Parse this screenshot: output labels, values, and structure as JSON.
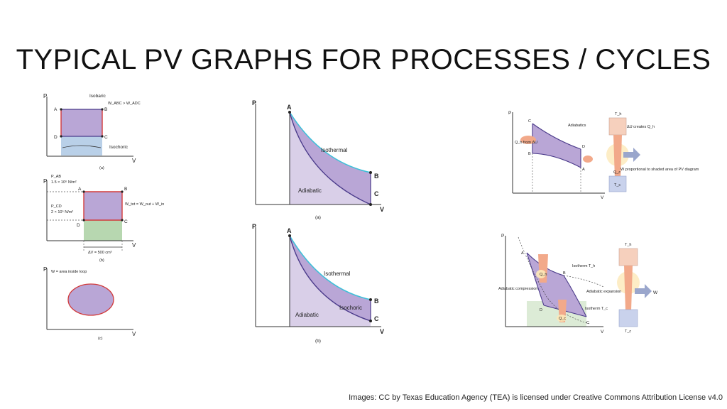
{
  "title": "TYPICAL PV GRAPHS FOR PROCESSES / CYCLES",
  "credit": "Images: CC by Texas Education Agency (TEA) is licensed under Creative Commons Attribution License v4.0",
  "axis": {
    "p": "P",
    "v": "V"
  },
  "fig_a": {
    "isobaric": "Isobaric",
    "work_cmp": "W_ABC > W_ADC",
    "isochoric": "Isochoric",
    "points": [
      "A",
      "B",
      "C",
      "D"
    ],
    "caption": "(a)"
  },
  "fig_b": {
    "p_ab_label": "P_AB",
    "p_ab_value": "1.5 × 10⁶ N/m²",
    "p_cd_label": "P_CD",
    "p_cd_value": "2 × 10⁵ N/m²",
    "w_tot": "W_tot = W_out + W_in",
    "dv": "ΔV = 500 cm³",
    "points": [
      "A",
      "B",
      "C",
      "D"
    ],
    "caption": "(b)"
  },
  "fig_c": {
    "loop": "W = area inside loop",
    "caption": "(c)"
  },
  "mid_a": {
    "isothermal": "Isothermal",
    "adiabatic": "Adiabatic",
    "points": [
      "A",
      "B",
      "C"
    ],
    "caption": "(a)"
  },
  "mid_b": {
    "isothermal": "Isothermal",
    "isochoric": "Isochoric",
    "adiabatic": "Adiabatic",
    "points": [
      "A",
      "B",
      "C"
    ],
    "caption": "(b)"
  },
  "right_top": {
    "adiabatics": "Adiabatics",
    "qh_from": "Q_h from ΔU",
    "th": "T_h",
    "du_creates": "ΔU creates Q_h",
    "w_prop": "W proportional to shaded area of PV diagram",
    "tc": "T_c",
    "qc": "Q_c",
    "points": [
      "A",
      "B",
      "C",
      "D"
    ]
  },
  "right_bot": {
    "isotherm_th": "Isotherm T_h",
    "isotherm_tc": "Isotherm T_c",
    "adi_comp": "Adiabatic compression",
    "adi_exp": "Adiabatic expansion",
    "th": "T_h",
    "tc": "T_c",
    "qh": "Q_h",
    "qc": "Q_c",
    "w": "W",
    "points": [
      "A",
      "B",
      "C",
      "D"
    ]
  },
  "colors": {
    "purple": "#b9a6d6",
    "green": "#b7d7b0",
    "blue": "#b9d0e8",
    "red": "#d23a3a",
    "cyan": "#3ec0d8",
    "line": "#4a3a8a"
  }
}
